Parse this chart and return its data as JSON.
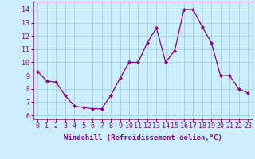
{
  "x": [
    0,
    1,
    2,
    3,
    4,
    5,
    6,
    7,
    8,
    9,
    10,
    11,
    12,
    13,
    14,
    15,
    16,
    17,
    18,
    19,
    20,
    21,
    22,
    23
  ],
  "y": [
    9.3,
    8.6,
    8.5,
    7.5,
    6.7,
    6.6,
    6.5,
    6.5,
    7.5,
    8.8,
    10.0,
    10.0,
    11.5,
    12.6,
    10.0,
    10.9,
    14.0,
    14.0,
    12.7,
    11.5,
    9.0,
    9.0,
    8.0,
    7.7
  ],
  "line_color": "#880088",
  "marker": "D",
  "marker_size": 2.0,
  "line_width": 0.9,
  "bg_color": "#cceeff",
  "grid_color": "#99cccc",
  "xlabel": "Windchill (Refroidissement éolien,°C)",
  "xlabel_fontsize": 6.5,
  "ylabel_ticks": [
    6,
    7,
    8,
    9,
    10,
    11,
    12,
    13,
    14
  ],
  "xlim": [
    -0.5,
    23.5
  ],
  "ylim": [
    5.7,
    14.6
  ],
  "tick_fontsize": 6,
  "label_color": "#880088"
}
